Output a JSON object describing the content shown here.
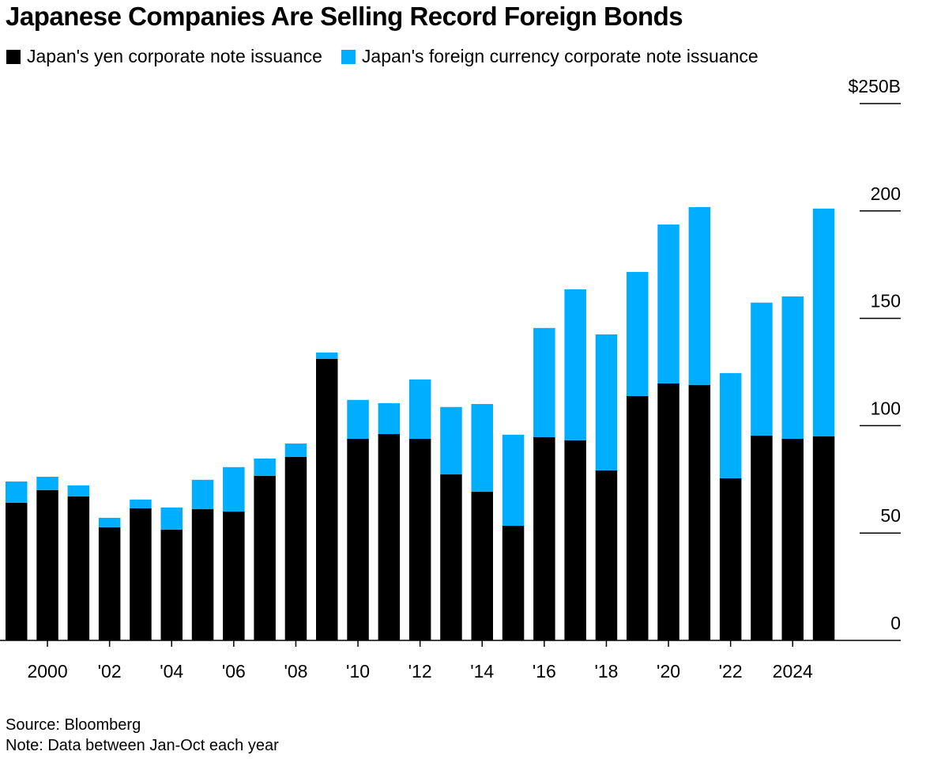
{
  "title": "Japanese Companies Are Selling Record Foreign Bonds",
  "source": "Source: Bloomberg",
  "note": "Note: Data between Jan-Oct each year",
  "chart_data": {
    "type": "bar",
    "stacked": true,
    "title": "Japanese Companies Are Selling Record Foreign Bonds",
    "categories": [
      "1999",
      "2000",
      "2001",
      "2002",
      "2003",
      "2004",
      "2005",
      "2006",
      "2007",
      "2008",
      "2009",
      "2010",
      "2011",
      "2012",
      "2013",
      "2014",
      "2015",
      "2016",
      "2017",
      "2018",
      "2019",
      "2020",
      "2021",
      "2022",
      "2023",
      "2024",
      "2025"
    ],
    "x_tick_labels": [
      {
        "year": "2000",
        "label": "2000"
      },
      {
        "year": "2002",
        "label": "'02"
      },
      {
        "year": "2004",
        "label": "'04"
      },
      {
        "year": "2006",
        "label": "'06"
      },
      {
        "year": "2008",
        "label": "'08"
      },
      {
        "year": "2010",
        "label": "'10"
      },
      {
        "year": "2012",
        "label": "'12"
      },
      {
        "year": "2014",
        "label": "'14"
      },
      {
        "year": "2016",
        "label": "'16"
      },
      {
        "year": "2018",
        "label": "'18"
      },
      {
        "year": "2020",
        "label": "'20"
      },
      {
        "year": "2022",
        "label": "'22"
      },
      {
        "year": "2024",
        "label": "2024"
      }
    ],
    "y_ticks": [
      {
        "value": 0,
        "label": "0"
      },
      {
        "value": 50,
        "label": "50"
      },
      {
        "value": 100,
        "label": "100"
      },
      {
        "value": 150,
        "label": "150"
      },
      {
        "value": 200,
        "label": "200"
      },
      {
        "value": 250,
        "label": "$250B"
      }
    ],
    "ylim": [
      0,
      250
    ],
    "axis_side": "right",
    "legend_placement": "top-left",
    "series": [
      {
        "name": "Japan's yen corporate note issuance",
        "color": "#000000",
        "values": [
          64.1,
          70.0,
          67.0,
          52.7,
          61.5,
          51.6,
          61.1,
          60.0,
          76.6,
          85.5,
          131.1,
          93.9,
          96.1,
          93.9,
          77.3,
          69.2,
          53.4,
          94.7,
          93.2,
          79.2,
          113.8,
          119.7,
          119.0,
          75.5,
          95.4,
          93.9,
          95.0
        ]
      },
      {
        "name": "Japan's foreign currency corporate note issuance",
        "color": "#00aeff",
        "values": [
          9.9,
          6.2,
          5.2,
          4.4,
          4.1,
          10.3,
          13.7,
          20.7,
          8.1,
          6.2,
          3.0,
          18.1,
          14.4,
          27.6,
          31.4,
          40.9,
          42.4,
          50.8,
          70.3,
          63.3,
          57.8,
          74.0,
          82.8,
          49.0,
          61.9,
          66.3,
          106.1
        ]
      }
    ]
  }
}
